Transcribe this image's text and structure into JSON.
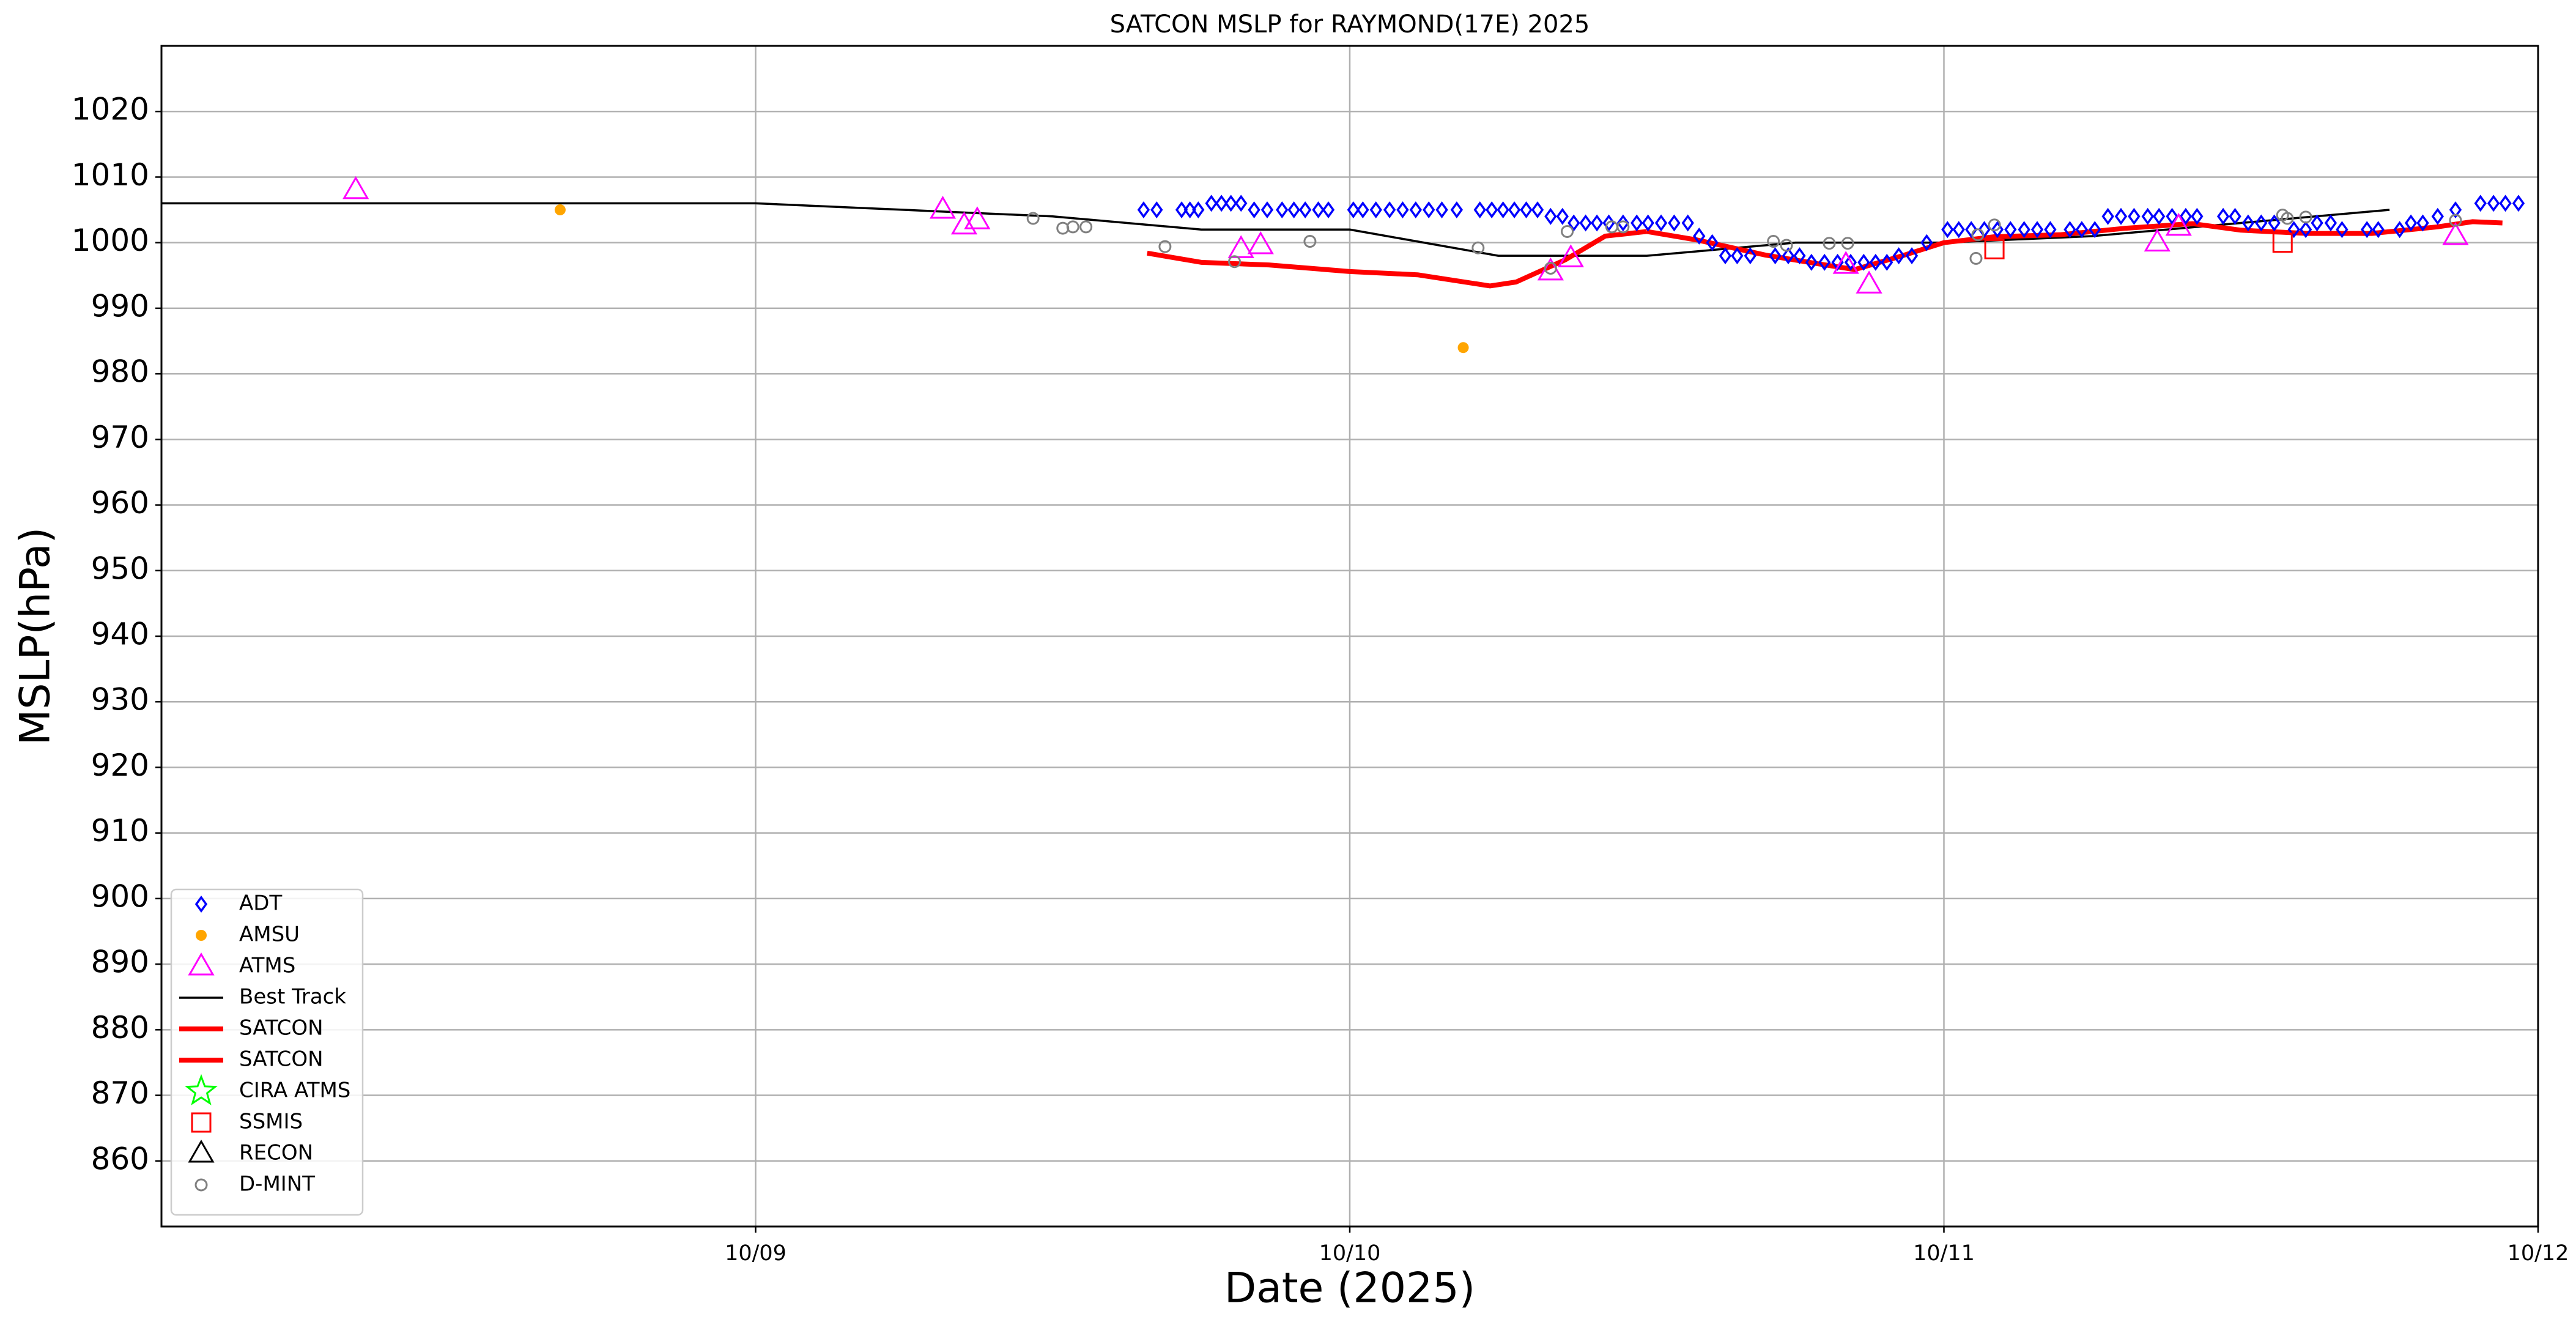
{
  "chart_data": {
    "type": "scatter",
    "title": "SATCON MSLP for RAYMOND(17E) 2025",
    "x_label": "Date (2025)",
    "y_label": "MSLP(hPa)",
    "xlim": [
      8,
      12
    ],
    "xticks": [
      {
        "value": 9,
        "label": "10/09"
      },
      {
        "value": 10,
        "label": "10/10"
      },
      {
        "value": 11,
        "label": "10/11"
      },
      {
        "value": 12,
        "label": "10/12"
      }
    ],
    "ylim": [
      850,
      1030
    ],
    "yticks": [
      860,
      870,
      880,
      890,
      900,
      910,
      920,
      930,
      940,
      950,
      960,
      970,
      980,
      990,
      1000,
      1010,
      1020
    ],
    "grid": true,
    "legend": "lower left",
    "series": [
      {
        "name": "ADT",
        "color": "#0000ff",
        "marker": "diamond",
        "x": [
          9.653,
          9.675,
          9.717,
          9.731,
          9.745,
          9.767,
          9.784,
          9.8,
          9.817,
          9.839,
          9.861,
          9.886,
          9.906,
          9.925,
          9.947,
          9.964,
          10.006,
          10.022,
          10.044,
          10.067,
          10.089,
          10.111,
          10.133,
          10.155,
          10.18,
          10.219,
          10.239,
          10.258,
          10.277,
          10.297,
          10.316,
          10.338,
          10.358,
          10.377,
          10.397,
          10.416,
          10.436,
          10.46,
          10.483,
          10.502,
          10.524,
          10.546,
          10.569,
          10.588,
          10.61,
          10.632,
          10.652,
          10.674,
          10.716,
          10.738,
          10.757,
          10.777,
          10.799,
          10.821,
          10.843,
          10.865,
          10.885,
          10.904,
          10.924,
          10.946,
          10.971,
          11.006,
          11.025,
          11.046,
          11.068,
          11.09,
          11.112,
          11.135,
          11.157,
          11.179,
          11.212,
          11.232,
          11.254,
          11.276,
          11.298,
          11.32,
          11.343,
          11.362,
          11.384,
          11.407,
          11.426,
          11.47,
          11.49,
          11.512,
          11.534,
          11.556,
          11.589,
          11.609,
          11.628,
          11.651,
          11.67,
          11.712,
          11.731,
          11.767,
          11.786,
          11.806,
          11.831,
          11.861,
          11.903,
          11.925,
          11.945,
          11.967
        ],
        "values": [
          1005,
          1005,
          1005,
          1005,
          1005,
          1006,
          1006,
          1006,
          1006,
          1005,
          1005,
          1005,
          1005,
          1005,
          1005,
          1005,
          1005,
          1005,
          1005,
          1005,
          1005,
          1005,
          1005,
          1005,
          1005,
          1005,
          1005,
          1005,
          1005,
          1005,
          1005,
          1004,
          1004,
          1003,
          1003,
          1003,
          1003,
          1003,
          1003,
          1003,
          1003,
          1003,
          1003,
          1001,
          1000,
          998,
          998,
          998,
          998,
          998,
          998,
          997,
          997,
          997,
          997,
          997,
          997,
          997,
          998,
          998,
          1000,
          1002,
          1002,
          1002,
          1002,
          1002,
          1002,
          1002,
          1002,
          1002,
          1002,
          1002,
          1002,
          1004,
          1004,
          1004,
          1004,
          1004,
          1004,
          1004,
          1004,
          1004,
          1004,
          1003,
          1003,
          1003,
          1002,
          1002,
          1003,
          1003,
          1002,
          1002,
          1002,
          1002,
          1003,
          1003,
          1004,
          1005,
          1006,
          1006,
          1006,
          1006
        ]
      },
      {
        "name": "AMSU",
        "color": "#ffa500",
        "marker": "dot",
        "x": [
          8.671,
          10.191
        ],
        "values": [
          1005,
          984
        ]
      },
      {
        "name": "ATMS",
        "color": "#ff00ff",
        "marker": "triangle",
        "x": [
          8.327,
          9.315,
          9.351,
          9.373,
          9.817,
          9.85,
          10.338,
          10.372,
          10.835,
          10.874,
          11.359,
          11.395,
          11.861
        ],
        "values": [
          1008,
          1005,
          1002.6,
          1003.4,
          999,
          999.6,
          995.6,
          997.6,
          996.6,
          993.6,
          1000,
          1002.4,
          1001
        ]
      },
      {
        "name": "Best Track",
        "color": "#000000",
        "marker": "line",
        "x": [
          8,
          9,
          9.25,
          9.5,
          9.75,
          10,
          10.25,
          10.5,
          10.75,
          11,
          11.25,
          11.5,
          11.75
        ],
        "values": [
          1006,
          1006,
          1005,
          1004,
          1002,
          1002,
          998,
          998,
          1000,
          1000,
          1001,
          1003,
          1005
        ]
      },
      {
        "name": "SATCON",
        "color": "#ff0000",
        "marker": "thickline",
        "x": [
          9.659,
          9.75,
          9.864,
          10,
          10.114,
          10.236,
          10.28,
          10.363,
          10.43,
          10.5
        ],
        "values": [
          998.4,
          997,
          996.6,
          995.6,
          995.1,
          993.4,
          994,
          997.4,
          1001,
          1001.7
        ]
      },
      {
        "name": "SATCON",
        "color": "#ff0000",
        "marker": "thickline",
        "x": [
          10.5,
          10.585,
          10.7,
          10.78,
          10.85,
          10.93,
          11,
          11.085,
          11.195,
          11.306,
          11.418,
          11.5,
          11.612,
          11.72,
          11.83,
          11.89,
          11.94
        ],
        "values": [
          1001.7,
          1000.4,
          998.1,
          996.9,
          995.9,
          998,
          1000,
          1000.9,
          1001.2,
          1002.2,
          1002.9,
          1001.9,
          1001.4,
          1001.4,
          1002.4,
          1003.2,
          1003
        ]
      },
      {
        "name": "CIRA ATMS",
        "color": "#00ff00",
        "marker": "star",
        "x": [],
        "values": []
      },
      {
        "name": "SSMIS",
        "color": "#ff0000",
        "marker": "square",
        "x": [
          11.085,
          11.57
        ],
        "values": [
          999,
          1000
        ]
      },
      {
        "name": "RECON",
        "color": "#000000",
        "marker": "triangle",
        "x": [],
        "values": []
      },
      {
        "name": "D-MINT",
        "color": "#808080",
        "marker": "circle",
        "x": [
          9.467,
          9.517,
          9.534,
          9.556,
          9.689,
          9.806,
          9.933,
          10.216,
          10.338,
          10.366,
          10.441,
          10.46,
          10.713,
          10.735,
          10.807,
          10.838,
          11.054,
          11.057,
          11.085,
          11.57,
          11.578,
          11.609,
          11.861
        ],
        "values": [
          1003.7,
          1002.2,
          1002.4,
          1002.4,
          999.4,
          997.1,
          1000.2,
          999.2,
          996.1,
          1001.7,
          1002.4,
          1002.4,
          1000.2,
          999.6,
          999.9,
          999.9,
          997.6,
          1001.2,
          1002.7,
          1004.2,
          1003.7,
          1003.9,
          1003.4
        ]
      }
    ]
  }
}
